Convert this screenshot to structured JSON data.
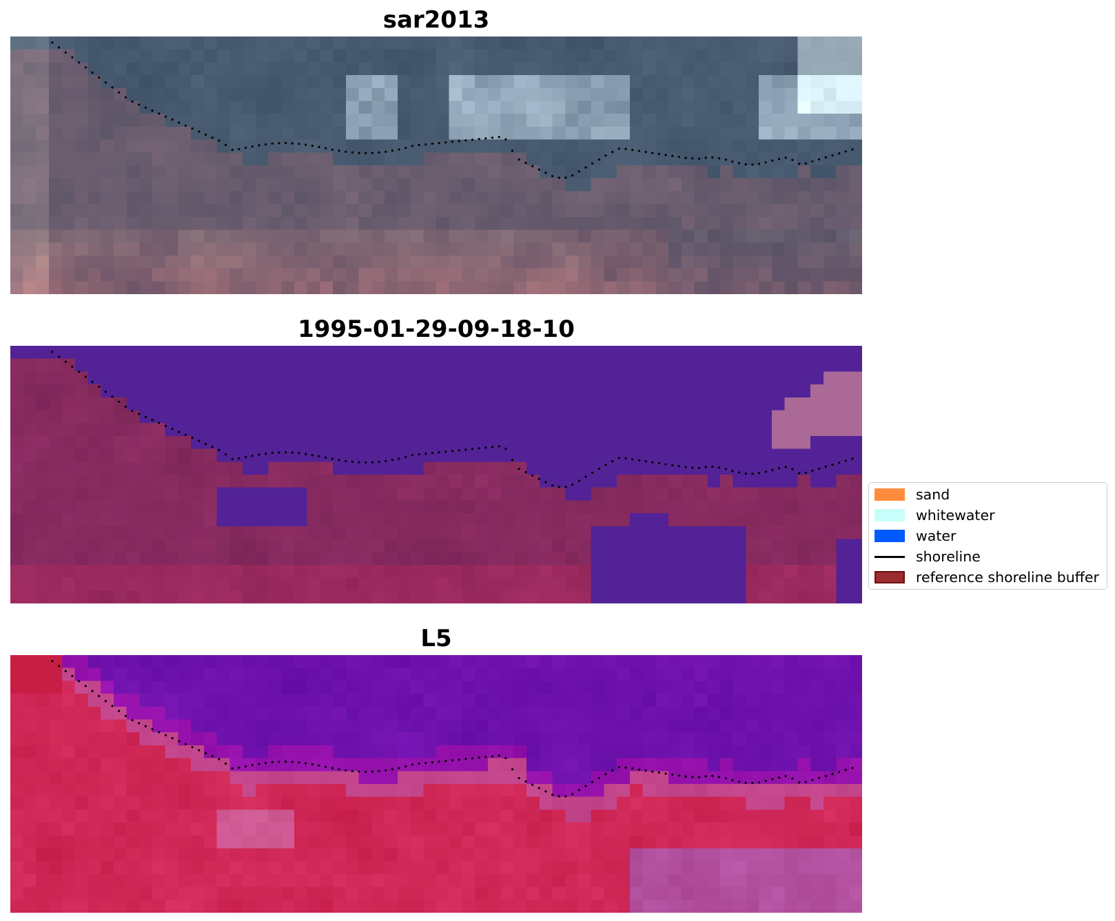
{
  "panels": [
    {
      "title": "sar2013",
      "kind": "rgb"
    },
    {
      "title": "1995-01-29-09-18-10",
      "kind": "classified"
    },
    {
      "title": "L5",
      "kind": "false-color"
    }
  ],
  "shoreline": {
    "style": "dotted",
    "color": "#000000"
  },
  "legend": {
    "items": [
      {
        "label": "sand",
        "type": "patch",
        "color": "#ff8c3c"
      },
      {
        "label": "whitewater",
        "type": "patch",
        "color": "#c8fffa"
      },
      {
        "label": "water",
        "type": "patch",
        "color": "#005aff"
      },
      {
        "label": "shoreline",
        "type": "line",
        "color": "#000000"
      },
      {
        "label": "reference shoreline buffer",
        "type": "patch",
        "color": "#9b2c2f",
        "edge": "#6b0f12"
      }
    ]
  }
}
